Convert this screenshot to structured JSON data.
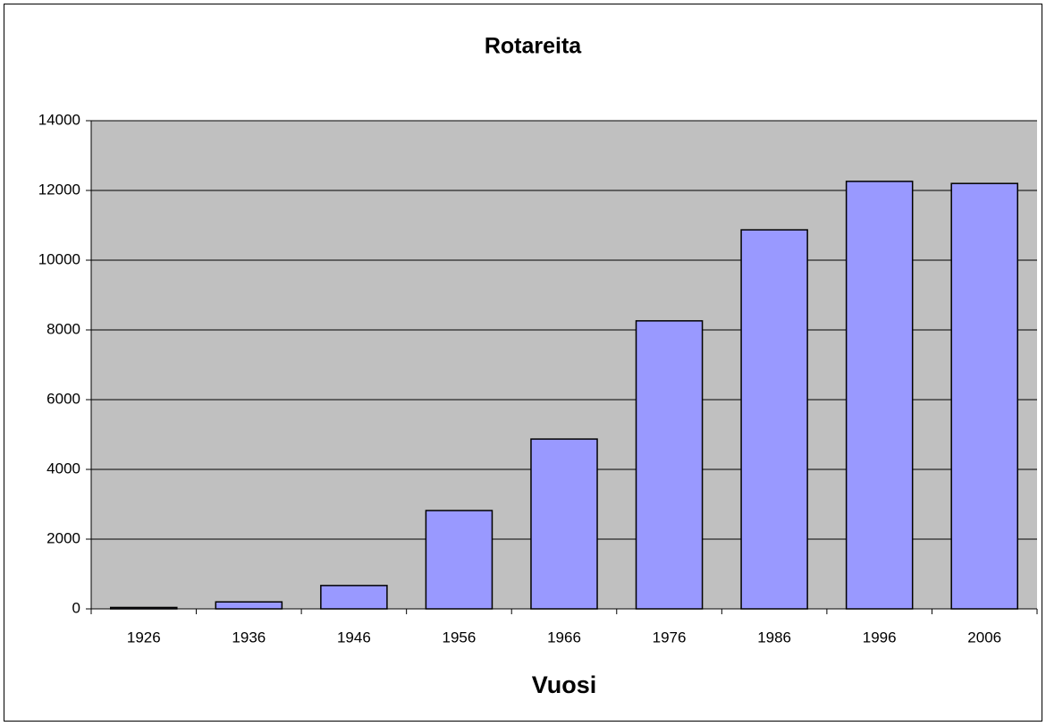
{
  "chart_data": {
    "type": "bar",
    "title": "Rotareita",
    "x_label": "Vuosi",
    "categories": [
      "1926",
      "1936",
      "1946",
      "1956",
      "1966",
      "1976",
      "1986",
      "1996",
      "2006"
    ],
    "values": [
      40,
      200,
      670,
      2820,
      4870,
      8260,
      10870,
      12260,
      12200
    ],
    "color": "#9999ff",
    "ylim": [
      0,
      14000
    ],
    "yticks": [
      0,
      2000,
      4000,
      6000,
      8000,
      10000,
      12000,
      14000
    ],
    "grid": true
  }
}
